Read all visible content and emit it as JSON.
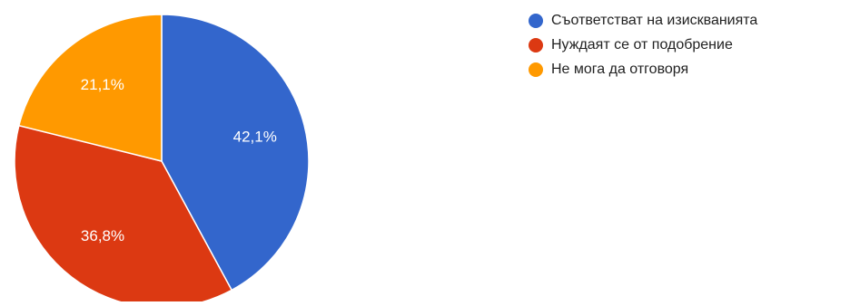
{
  "chart_data": {
    "type": "pie",
    "title": "",
    "start_angle_deg": 90,
    "direction": "clockwise",
    "slices": [
      {
        "label": "Съответстват на изискванията",
        "value": 42.1,
        "display": "42,1%",
        "color": "#3366cc"
      },
      {
        "label": "Нуждаят се от подобрение",
        "value": 36.8,
        "display": "36,8%",
        "color": "#dc3912"
      },
      {
        "label": "Не мога да отговоря",
        "value": 21.1,
        "display": "21,1%",
        "color": "#ff9900"
      }
    ],
    "legend": {
      "position": "right"
    }
  }
}
